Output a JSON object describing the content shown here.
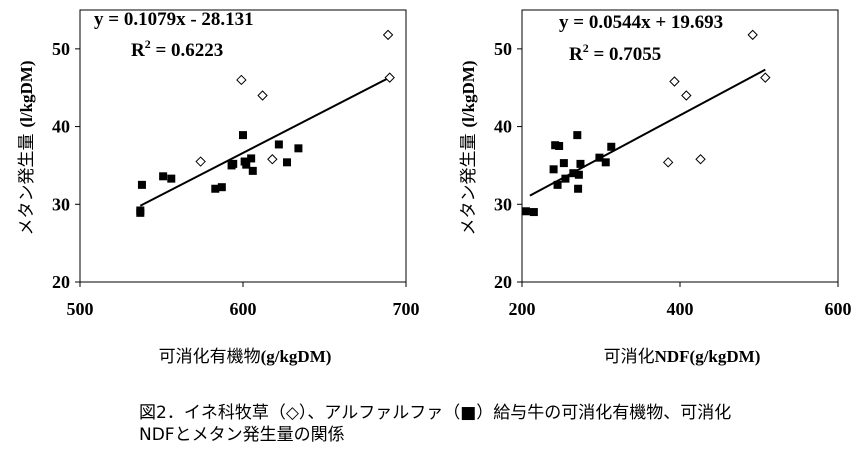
{
  "chart_data": [
    {
      "type": "scatter",
      "xlabel_prefix": "可消化有機物",
      "xlabel_unit": "(g/kgDM)",
      "ylabel_prefix": "メタン発生量",
      "ylabel_unit": "(l/kgDM)",
      "xlim": [
        500,
        700
      ],
      "ylim": [
        20,
        55
      ],
      "xticks": [
        500,
        600,
        700
      ],
      "yticks": [
        20,
        30,
        40,
        50
      ],
      "equation": "y = 0.1079x - 28.131",
      "r2_label": "R",
      "r2_sup": "2",
      "r2_value": " = 0.6223",
      "trendline": {
        "slope": 0.1079,
        "intercept": -28.131,
        "x_range": [
          537,
          690
        ]
      },
      "series": [
        {
          "name": "イネ科牧草",
          "marker": "diamond-open",
          "points": [
            [
              574,
              35.5
            ],
            [
              599,
              46
            ],
            [
              612,
              44
            ],
            [
              618,
              35.8
            ],
            [
              689,
              51.8
            ],
            [
              690,
              46.3
            ]
          ]
        },
        {
          "name": "アルファルファ",
          "marker": "square-filled",
          "points": [
            [
              537,
              29.2
            ],
            [
              537,
              28.9
            ],
            [
              538,
              32.5
            ],
            [
              551,
              33.6
            ],
            [
              556,
              33.3
            ],
            [
              583,
              32
            ],
            [
              587,
              32.2
            ],
            [
              593,
              35
            ],
            [
              594,
              35.2
            ],
            [
              600,
              38.9
            ],
            [
              601,
              35.5
            ],
            [
              602,
              35.1
            ],
            [
              605,
              35.9
            ],
            [
              606,
              34.3
            ],
            [
              622,
              37.7
            ],
            [
              627,
              35.4
            ],
            [
              634,
              37.2
            ]
          ]
        }
      ]
    },
    {
      "type": "scatter",
      "xlabel_prefix": "可消化",
      "xlabel_unit": "NDF(g/kgDM)",
      "ylabel_prefix": "メタン発生量",
      "ylabel_unit": "(l/kgDM)",
      "xlim": [
        200,
        600
      ],
      "ylim": [
        20,
        55
      ],
      "xticks": [
        200,
        400,
        600
      ],
      "yticks": [
        20,
        30,
        40,
        50
      ],
      "equation": "y = 0.0544x + 19.693",
      "r2_label": "R",
      "r2_sup": "2",
      "r2_value": " = 0.7055",
      "trendline": {
        "slope": 0.0544,
        "intercept": 19.693,
        "x_range": [
          210,
          508
        ]
      },
      "series": [
        {
          "name": "イネ科牧草",
          "marker": "diamond-open",
          "points": [
            [
              385,
              35.4
            ],
            [
              393,
              45.8
            ],
            [
              408,
              44
            ],
            [
              426,
              35.8
            ],
            [
              492,
              51.8
            ],
            [
              508,
              46.3
            ]
          ]
        },
        {
          "name": "アルファルファ",
          "marker": "square-filled",
          "points": [
            [
              205,
              29.1
            ],
            [
              215,
              29
            ],
            [
              240,
              34.5
            ],
            [
              242,
              37.6
            ],
            [
              245,
              32.5
            ],
            [
              247,
              37.5
            ],
            [
              253,
              35.3
            ],
            [
              255,
              33.3
            ],
            [
              265,
              34
            ],
            [
              270,
              38.9
            ],
            [
              271,
              32
            ],
            [
              272,
              33.8
            ],
            [
              274,
              35.2
            ],
            [
              298,
              36
            ],
            [
              306,
              35.4
            ],
            [
              313,
              37.4
            ]
          ]
        }
      ]
    }
  ],
  "caption": {
    "line1": "図2．イネ科牧草（◇）、アルファルファ（■）給与牛の可消化有機物、可消化",
    "line2": "NDFとメタン発生量の関係"
  }
}
